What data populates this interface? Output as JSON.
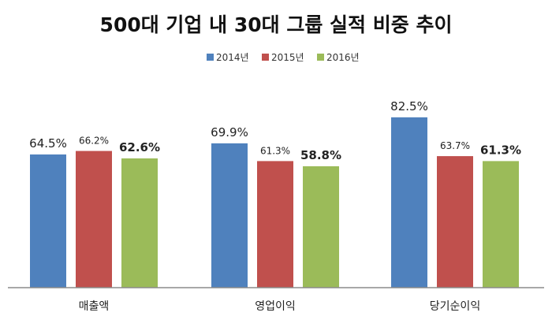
{
  "chart_data": {
    "type": "bar",
    "title": "500대 기업 내 30대 그룹 실적 비중 추이",
    "categories": [
      "매출액",
      "영업이익",
      "당기순이익"
    ],
    "series": [
      {
        "name": "2014년",
        "color": "#4f81bd",
        "values": [
          64.5,
          69.9,
          82.5
        ],
        "labels": [
          "64.5%",
          "69.9%",
          "82.5%"
        ]
      },
      {
        "name": "2015년",
        "color": "#c0504d",
        "values": [
          66.2,
          61.3,
          63.7
        ],
        "labels": [
          "66.2%",
          "61.3%",
          "63.7%"
        ]
      },
      {
        "name": "2016년",
        "color": "#9bbb59",
        "values": [
          62.6,
          58.8,
          61.3
        ],
        "labels": [
          "62.6%",
          "58.8%",
          "61.3%"
        ]
      }
    ],
    "ylim": [
      0,
      100
    ],
    "legend_position": "top-center",
    "grid": false,
    "xlabel": "",
    "ylabel": ""
  }
}
